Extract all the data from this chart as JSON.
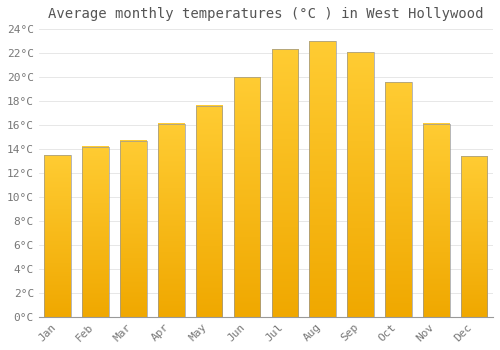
{
  "title": "Average monthly temperatures (°C ) in West Hollywood",
  "months": [
    "Jan",
    "Feb",
    "Mar",
    "Apr",
    "May",
    "Jun",
    "Jul",
    "Aug",
    "Sep",
    "Oct",
    "Nov",
    "Dec"
  ],
  "temperatures": [
    13.5,
    14.2,
    14.7,
    16.1,
    17.6,
    20.0,
    22.3,
    23.0,
    22.1,
    19.6,
    16.1,
    13.4
  ],
  "bar_color_top": "#FFCC33",
  "bar_color_bottom": "#F0A800",
  "bar_edge_color": "#999999",
  "background_color": "#FFFFFF",
  "grid_color": "#DDDDDD",
  "text_color": "#777777",
  "title_color": "#555555",
  "ylim": [
    0,
    24
  ],
  "yticks": [
    0,
    2,
    4,
    6,
    8,
    10,
    12,
    14,
    16,
    18,
    20,
    22,
    24
  ],
  "title_fontsize": 10,
  "tick_fontsize": 8,
  "font_family": "monospace",
  "bar_width": 0.7
}
